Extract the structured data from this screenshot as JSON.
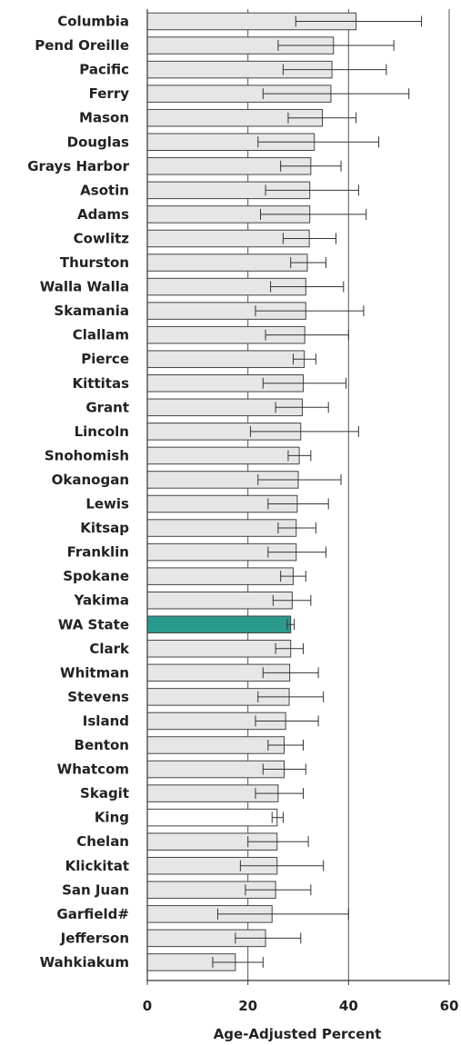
{
  "chart_data": {
    "type": "bar",
    "orientation": "horizontal",
    "xlabel": "Age-Adjusted Percent",
    "xlim": [
      0,
      60
    ],
    "xticks": [
      0,
      20,
      40,
      60
    ],
    "grid": "vertical gridlines at major ticks",
    "colors": {
      "default": "#e6e6e6",
      "highlight": "#2a9a8f",
      "unfilled": "#ffffff",
      "stroke": "#444444"
    },
    "categories": [
      "Columbia",
      "Pend Oreille",
      "Pacific",
      "Ferry",
      "Mason",
      "Douglas",
      "Grays Harbor",
      "Asotin",
      "Adams",
      "Cowlitz",
      "Thurston",
      "Walla Walla",
      "Skamania",
      "Clallam",
      "Pierce",
      "Kittitas",
      "Grant",
      "Lincoln",
      "Snohomish",
      "Okanogan",
      "Lewis",
      "Kitsap",
      "Franklin",
      "Spokane",
      "Yakima",
      "WA State",
      "Clark",
      "Whitman",
      "Stevens",
      "Island",
      "Benton",
      "Whatcom",
      "Skagit",
      "King",
      "Chelan",
      "Klickitat",
      "San Juan",
      "Garfield#",
      "Jefferson",
      "Wahkiakum"
    ],
    "values": [
      41.5,
      37.0,
      36.7,
      36.5,
      34.8,
      33.2,
      32.5,
      32.3,
      32.3,
      32.2,
      31.8,
      31.5,
      31.5,
      31.3,
      31.2,
      31.0,
      30.8,
      30.5,
      30.2,
      30.0,
      29.8,
      29.6,
      29.6,
      29.0,
      28.8,
      28.5,
      28.5,
      28.3,
      28.2,
      27.5,
      27.2,
      27.2,
      26.0,
      25.8,
      25.8,
      25.8,
      25.5,
      24.8,
      23.5,
      17.5
    ],
    "ci_low": [
      29.5,
      26.0,
      27.0,
      23.0,
      28.0,
      22.0,
      26.5,
      23.5,
      22.5,
      27.0,
      28.5,
      24.5,
      21.5,
      23.5,
      29.0,
      23.0,
      25.5,
      20.5,
      28.0,
      22.0,
      24.0,
      26.0,
      24.0,
      26.5,
      25.0,
      27.8,
      25.5,
      23.0,
      22.0,
      21.5,
      24.0,
      23.0,
      21.5,
      24.8,
      20.0,
      18.5,
      19.5,
      14.0,
      17.5,
      13.0
    ],
    "ci_high": [
      54.5,
      49.0,
      47.5,
      52.0,
      41.5,
      46.0,
      38.5,
      42.0,
      43.5,
      37.5,
      35.5,
      39.0,
      43.0,
      40.0,
      33.5,
      39.5,
      36.0,
      42.0,
      32.5,
      38.5,
      36.0,
      33.5,
      35.5,
      31.5,
      32.5,
      29.2,
      31.0,
      34.0,
      35.0,
      34.0,
      31.0,
      31.5,
      31.0,
      27.0,
      32.0,
      35.0,
      32.5,
      40.0,
      30.5,
      23.0
    ],
    "styles": [
      "default",
      "default",
      "default",
      "default",
      "default",
      "default",
      "default",
      "default",
      "default",
      "default",
      "default",
      "default",
      "default",
      "default",
      "default",
      "default",
      "default",
      "default",
      "default",
      "default",
      "default",
      "default",
      "default",
      "default",
      "default",
      "highlight",
      "default",
      "default",
      "default",
      "default",
      "default",
      "default",
      "default",
      "unfilled",
      "default",
      "default",
      "default",
      "default",
      "default",
      "default"
    ]
  }
}
